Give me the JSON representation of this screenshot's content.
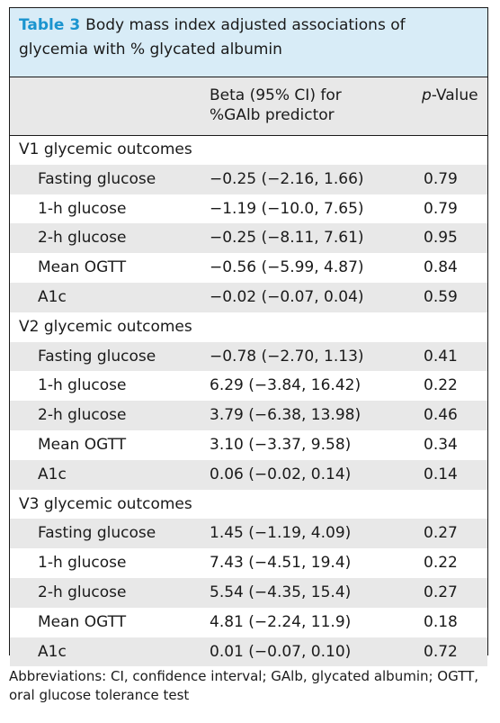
{
  "caption": {
    "label": "Table 3",
    "title": "Body mass index adjusted associations of glycemia with % glycated albumin"
  },
  "headers": {
    "beta": "Beta (95% CI) for %GAlb predictor",
    "p_italic": "p",
    "p_rest": "-Value"
  },
  "groups": [
    {
      "title": "V1 glycemic outcomes",
      "rows": [
        {
          "name": "Fasting glucose",
          "beta": "−0.25 (−2.16, 1.66)",
          "p": "0.79"
        },
        {
          "name": "1-h glucose",
          "beta": "−1.19 (−10.0, 7.65)",
          "p": "0.79"
        },
        {
          "name": "2-h glucose",
          "beta": "−0.25 (−8.11, 7.61)",
          "p": "0.95"
        },
        {
          "name": "Mean OGTT",
          "beta": "−0.56 (−5.99, 4.87)",
          "p": "0.84"
        },
        {
          "name": "A1c",
          "beta": "−0.02 (−0.07, 0.04)",
          "p": "0.59"
        }
      ]
    },
    {
      "title": "V2 glycemic outcomes",
      "rows": [
        {
          "name": "Fasting glucose",
          "beta": "−0.78 (−2.70, 1.13)",
          "p": "0.41"
        },
        {
          "name": "1-h glucose",
          "beta": "6.29 (−3.84, 16.42)",
          "p": "0.22"
        },
        {
          "name": "2-h glucose",
          "beta": "3.79 (−6.38, 13.98)",
          "p": "0.46"
        },
        {
          "name": "Mean OGTT",
          "beta": "3.10 (−3.37, 9.58)",
          "p": "0.34"
        },
        {
          "name": "A1c",
          "beta": "0.06 (−0.02, 0.14)",
          "p": "0.14"
        }
      ]
    },
    {
      "title": "V3 glycemic outcomes",
      "rows": [
        {
          "name": "Fasting glucose",
          "beta": "1.45 (−1.19, 4.09)",
          "p": "0.27"
        },
        {
          "name": "1-h glucose",
          "beta": "7.43 (−4.51, 19.4)",
          "p": "0.22"
        },
        {
          "name": "2-h glucose",
          "beta": "5.54 (−4.35, 15.4)",
          "p": "0.27"
        },
        {
          "name": "Mean OGTT",
          "beta": "4.81 (−2.24, 11.9)",
          "p": "0.18"
        },
        {
          "name": "A1c",
          "beta": "0.01 (−0.07, 0.10)",
          "p": "0.72"
        }
      ]
    }
  ],
  "footnote": "Abbreviations: CI, confidence interval; GAlb, glycated albumin; OGTT, oral glucose tolerance test"
}
